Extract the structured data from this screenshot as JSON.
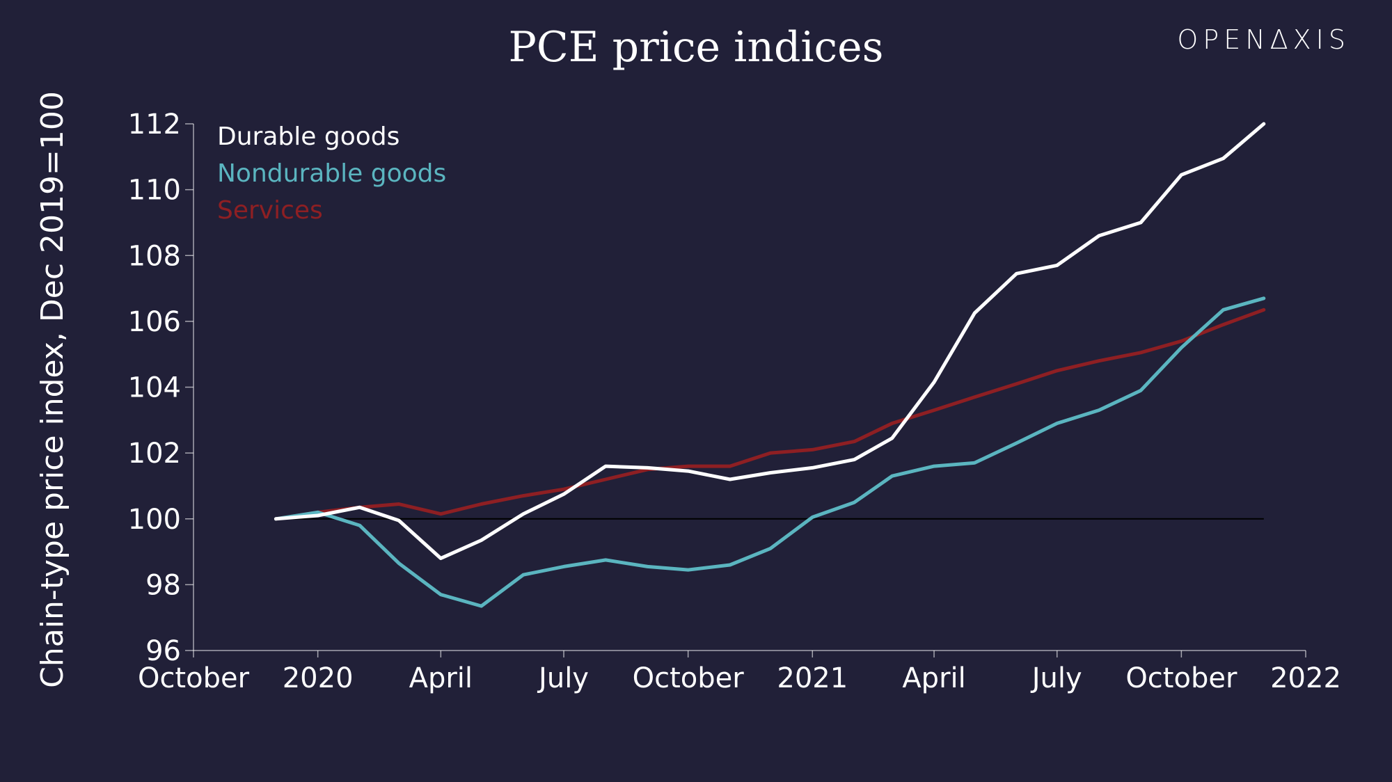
{
  "brand": "OPENΔXIS",
  "colors": {
    "background": "#212038",
    "axis": "#ffffff",
    "baseline": "#000000"
  },
  "chart_data": {
    "type": "line",
    "title": "PCE price indices",
    "xlabel": "",
    "ylabel": "Chain-type price index, Dec 2019=100",
    "ylim": [
      96,
      112
    ],
    "yticks": [
      96,
      98,
      100,
      102,
      104,
      106,
      108,
      110,
      112
    ],
    "xlim": [
      "2019-10-01",
      "2022-01-01"
    ],
    "xticks": [
      {
        "date": "2019-10-01",
        "label": "October"
      },
      {
        "date": "2020-01-01",
        "label": "2020"
      },
      {
        "date": "2020-04-01",
        "label": "April"
      },
      {
        "date": "2020-07-01",
        "label": "July"
      },
      {
        "date": "2020-10-01",
        "label": "October"
      },
      {
        "date": "2021-01-01",
        "label": "2021"
      },
      {
        "date": "2021-04-01",
        "label": "April"
      },
      {
        "date": "2021-07-01",
        "label": "July"
      },
      {
        "date": "2021-10-01",
        "label": "October"
      },
      {
        "date": "2022-01-01",
        "label": "2022"
      }
    ],
    "x": [
      "2019-12-01",
      "2020-01-01",
      "2020-02-01",
      "2020-03-01",
      "2020-04-01",
      "2020-05-01",
      "2020-06-01",
      "2020-07-01",
      "2020-08-01",
      "2020-09-01",
      "2020-10-01",
      "2020-11-01",
      "2020-12-01",
      "2021-01-01",
      "2021-02-01",
      "2021-03-01",
      "2021-04-01",
      "2021-05-01",
      "2021-06-01",
      "2021-07-01",
      "2021-08-01",
      "2021-09-01",
      "2021-10-01",
      "2021-11-01",
      "2021-12-01"
    ],
    "baseline": 100,
    "legend_position": "top-left",
    "grid": false,
    "series": [
      {
        "name": "Durable goods",
        "color": "#ffffff",
        "values": [
          100.0,
          100.1,
          100.35,
          99.95,
          98.8,
          99.35,
          100.15,
          100.75,
          101.6,
          101.55,
          101.45,
          101.2,
          101.4,
          101.55,
          101.8,
          102.45,
          104.15,
          106.25,
          107.45,
          107.7,
          108.6,
          109.0,
          110.45,
          110.95,
          112.0
        ]
      },
      {
        "name": "Nondurable goods",
        "color": "#5bb5c0",
        "values": [
          100.0,
          100.2,
          99.8,
          98.65,
          97.7,
          97.35,
          98.3,
          98.55,
          98.75,
          98.55,
          98.45,
          98.6,
          99.1,
          100.05,
          100.5,
          101.3,
          101.6,
          101.7,
          102.3,
          102.9,
          103.3,
          103.9,
          105.2,
          106.35,
          106.7
        ]
      },
      {
        "name": "Services",
        "color": "#8e1f23",
        "values": [
          100.0,
          100.2,
          100.35,
          100.45,
          100.15,
          100.45,
          100.7,
          100.9,
          101.2,
          101.5,
          101.6,
          101.6,
          102.0,
          102.1,
          102.35,
          102.9,
          103.3,
          103.7,
          104.1,
          104.5,
          104.8,
          105.05,
          105.4,
          105.9,
          106.35
        ]
      }
    ]
  }
}
